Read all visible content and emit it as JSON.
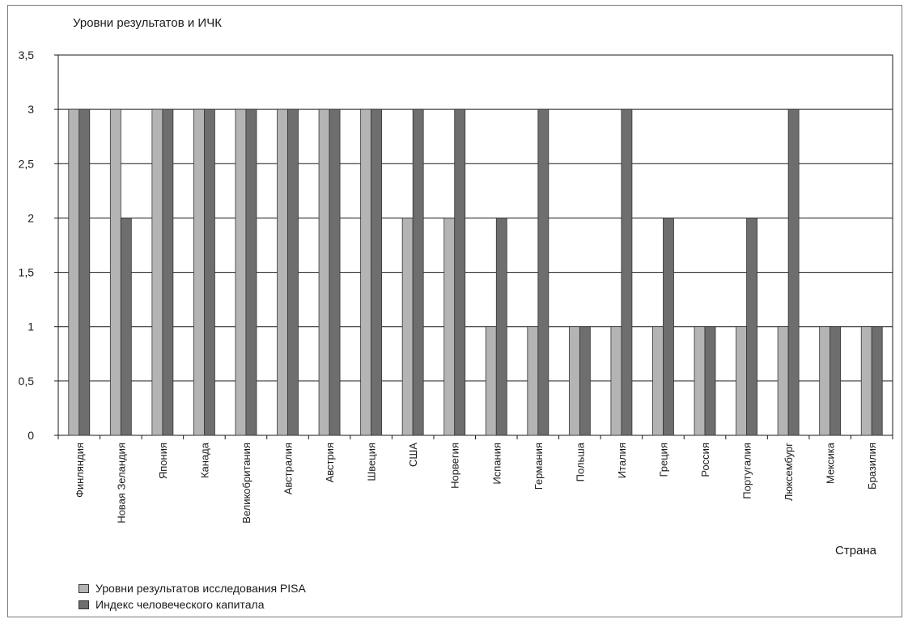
{
  "chart_data": {
    "type": "bar",
    "ylabel": "Уровни результатов и ИЧК",
    "xlabel": "Страна",
    "ylim": [
      0,
      3.5
    ],
    "yticks": [
      "0",
      "0,5",
      "1",
      "1,5",
      "2",
      "2,5",
      "3",
      "3,5"
    ],
    "grid": true,
    "legend_position": "bottom-left",
    "categories": [
      "Финляндия",
      "Новая Зеландия",
      "Япония",
      "Канада",
      "Великобритания",
      "Австралия",
      "Австрия",
      "Швеция",
      "США",
      "Норвегия",
      "Испания",
      "Германия",
      "Польша",
      "Италия",
      "Греция",
      "Россия",
      "Португалия",
      "Люксембург",
      "Мексика",
      "Бразилия"
    ],
    "series": [
      {
        "name": "Уровни результатов исследования PISA",
        "color": "#b4b4b4",
        "values": [
          3,
          3,
          3,
          3,
          3,
          3,
          3,
          3,
          2,
          2,
          1,
          1,
          1,
          1,
          1,
          1,
          1,
          1,
          1,
          1
        ]
      },
      {
        "name": "Индекс человеческого капитала",
        "color": "#6e6e6e",
        "values": [
          3,
          2,
          3,
          3,
          3,
          3,
          3,
          3,
          3,
          3,
          2,
          3,
          1,
          3,
          2,
          1,
          2,
          3,
          1,
          1
        ]
      }
    ]
  }
}
